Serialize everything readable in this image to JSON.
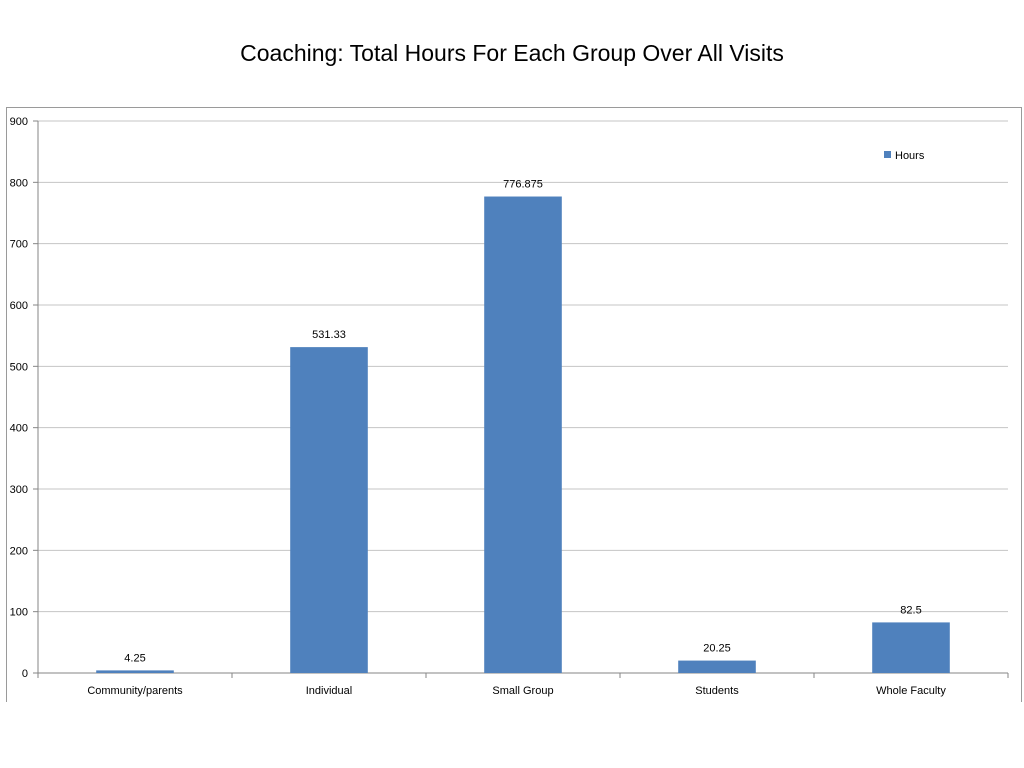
{
  "chart_data": {
    "type": "bar",
    "title": "Coaching: Total Hours For Each Group Over All Visits",
    "categories": [
      "Community/parents",
      "Individual",
      "Small Group",
      "Students",
      "Whole Faculty"
    ],
    "series": [
      {
        "name": "Hours",
        "values": [
          4.25,
          531.33,
          776.875,
          20.25,
          82.5
        ],
        "color": "#4f81bd"
      }
    ],
    "data_labels": [
      "4.25",
      "531.33",
      "776.875",
      "20.25",
      "82.5"
    ],
    "ylim": [
      0,
      900
    ],
    "yticks": [
      0,
      100,
      200,
      300,
      400,
      500,
      600,
      700,
      800,
      900
    ],
    "grid": true,
    "legend_position": "top-right"
  }
}
